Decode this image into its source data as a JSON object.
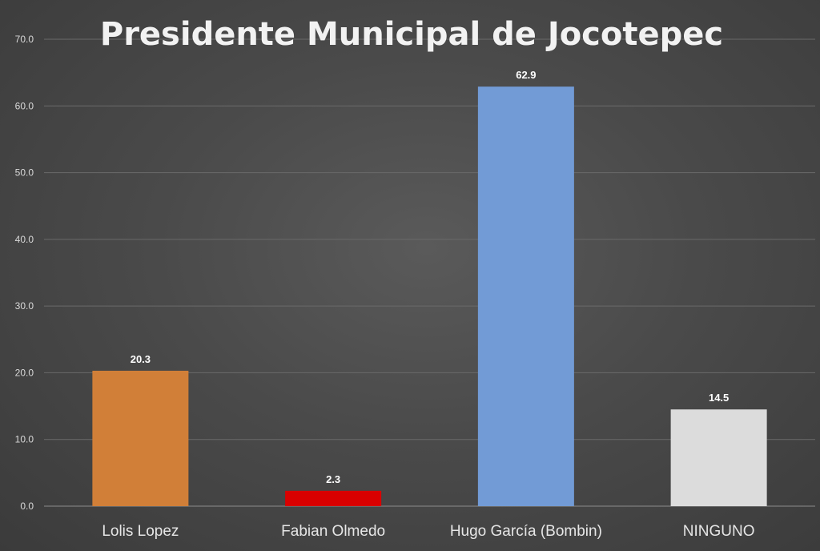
{
  "chart_data": {
    "type": "bar",
    "title": "Presidente Municipal de Jocotepec",
    "categories": [
      "Lolis Lopez",
      "Fabian Olmedo",
      "Hugo García (Bombin)",
      "NINGUNO"
    ],
    "values": [
      20.3,
      2.3,
      62.9,
      14.5
    ],
    "data_labels": [
      "20.3",
      "2.3",
      "62.9",
      "14.5"
    ],
    "colors": [
      "#d17f38",
      "#d90000",
      "#729bd6",
      "#dcdcdc"
    ],
    "ylim": [
      0,
      70
    ],
    "yticks": [
      0,
      10,
      20,
      30,
      40,
      50,
      60,
      70
    ],
    "ytick_labels": [
      "0.0",
      "10.0",
      "20.0",
      "30.0",
      "40.0",
      "50.0",
      "60.0",
      "70.0"
    ],
    "xlabel": "",
    "ylabel": "",
    "grid": true
  }
}
